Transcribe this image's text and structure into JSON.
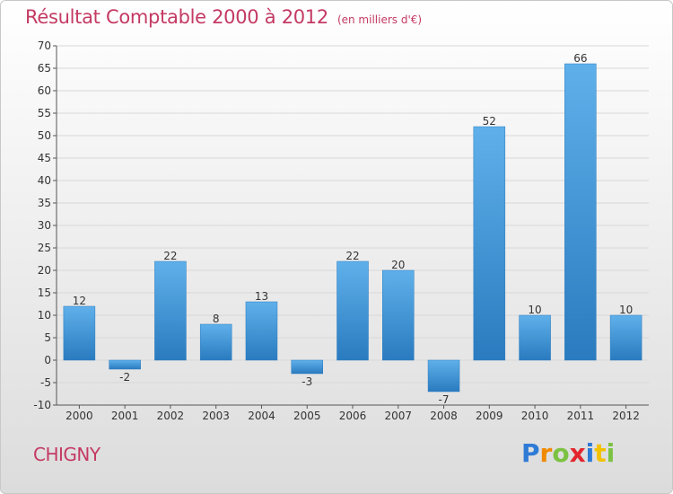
{
  "title": "Résultat Comptable 2000 à 2012",
  "subtitle": "(en milliers d'€)",
  "commune": "CHIGNY",
  "logo_text": "Proxiti",
  "colors": {
    "title": "#c43a63",
    "bar_top": "#5fb0ea",
    "bar_bottom": "#2a7bbf",
    "grid": "#d8d8d8"
  },
  "chart_data": {
    "type": "bar",
    "title": "Résultat Comptable 2000 à 2012",
    "subtitle": "(en milliers d'€)",
    "xlabel": "",
    "ylabel": "",
    "categories": [
      "2000",
      "2001",
      "2002",
      "2003",
      "2004",
      "2005",
      "2006",
      "2007",
      "2008",
      "2009",
      "2010",
      "2011",
      "2012"
    ],
    "values": [
      12,
      -2,
      22,
      8,
      13,
      -3,
      22,
      20,
      -7,
      52,
      10,
      66,
      10
    ],
    "ylim": [
      -10,
      70
    ],
    "yticks": [
      -10,
      -5,
      0,
      5,
      10,
      15,
      20,
      25,
      30,
      35,
      40,
      45,
      50,
      55,
      60,
      65,
      70
    ],
    "grid": true,
    "legend": "none"
  }
}
